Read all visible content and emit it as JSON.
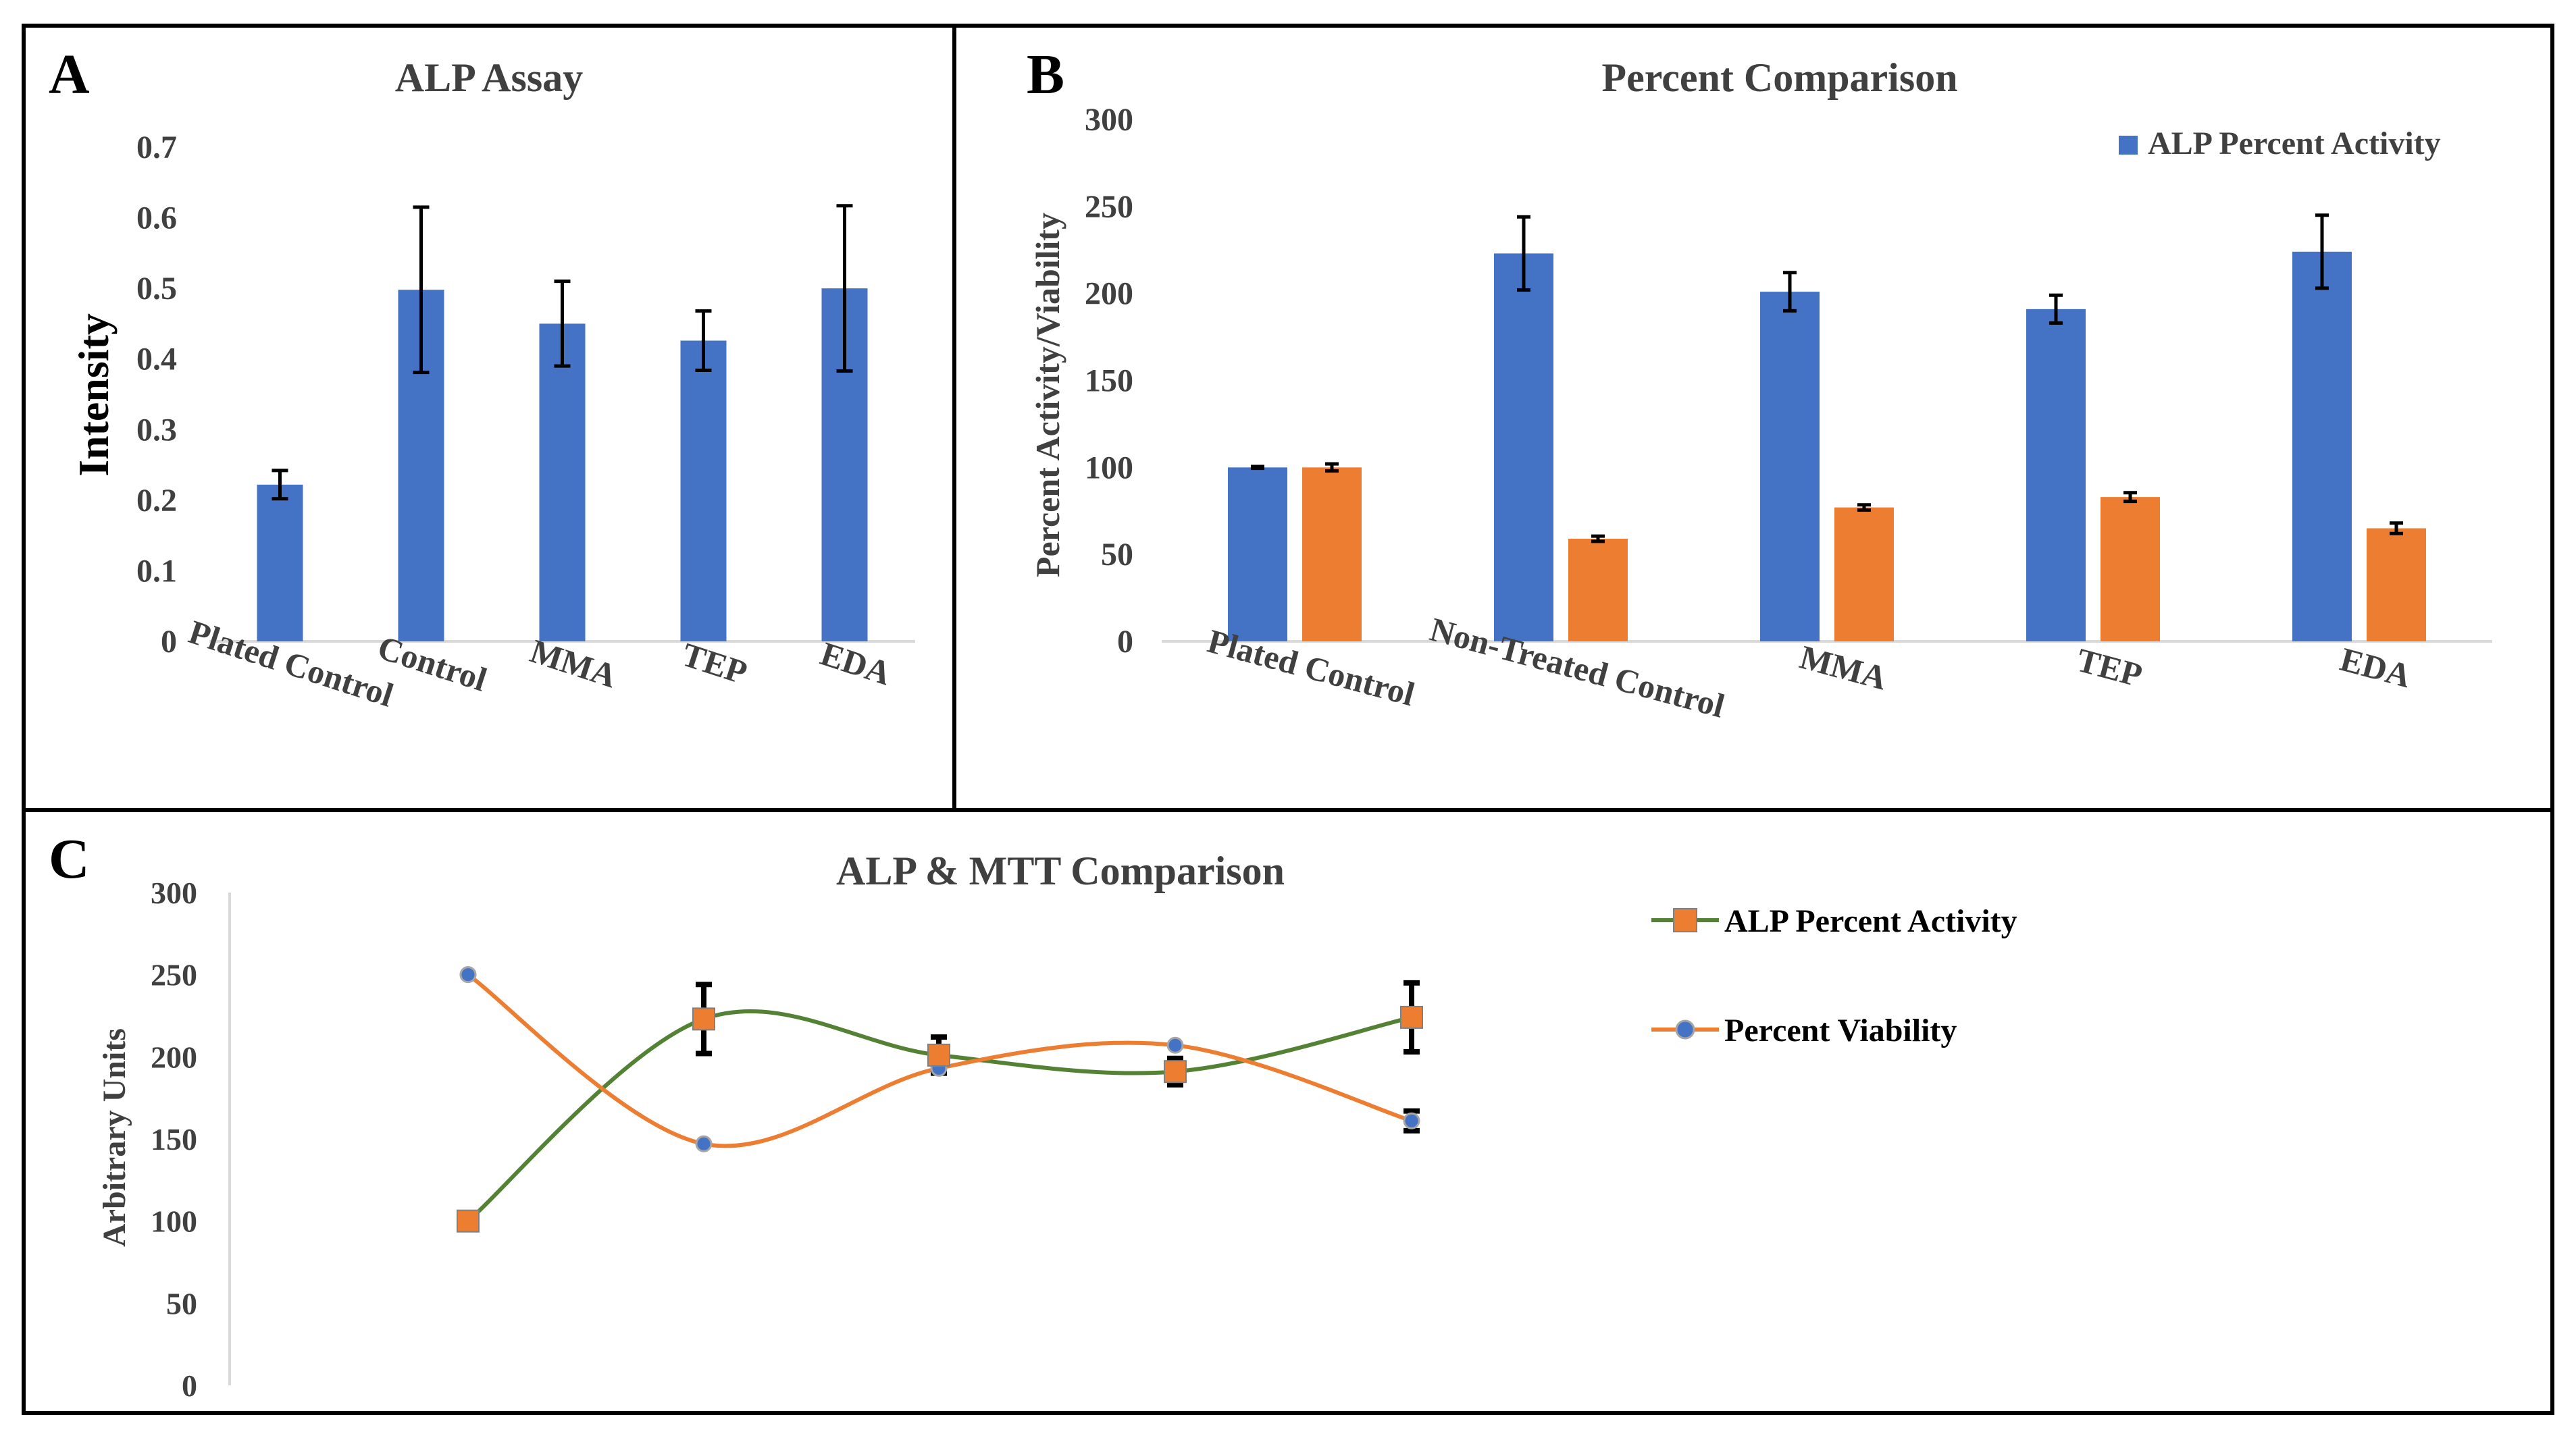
{
  "colors": {
    "blue": "#4472C4",
    "orange": "#ED7D31",
    "green": "#548235",
    "frame": "#000000",
    "axis": "#D9D9D9"
  },
  "panels": {
    "a": {
      "letter": "A"
    },
    "b": {
      "letter": "B"
    },
    "c": {
      "letter": "C"
    }
  },
  "chart_data": [
    {
      "id": "a",
      "type": "bar",
      "title": "ALP Assay",
      "xlabel": "",
      "ylabel": "Intensity",
      "categories": [
        "Plated Control",
        "Control",
        "MMA",
        "TEP",
        "EDA"
      ],
      "values": [
        0.222,
        0.498,
        0.45,
        0.426,
        0.5
      ],
      "errors": [
        0.02,
        0.117,
        0.06,
        0.042,
        0.117
      ],
      "ylim": [
        0,
        0.7
      ],
      "yticks": [
        "0",
        "0.1",
        "0.2",
        "0.3",
        "0.4",
        "0.5",
        "0.6",
        "0.7"
      ],
      "grid": false
    },
    {
      "id": "b",
      "type": "bar",
      "title": "Percent Comparison",
      "xlabel": "",
      "ylabel": "Percent Activity/Viability",
      "categories": [
        "Plated Control",
        "Non-Treated Control",
        "MMA",
        "TEP",
        "EDA"
      ],
      "series": [
        {
          "name": "ALP Percent Activity",
          "values": [
            100,
            223,
            201,
            191,
            224
          ],
          "errors": [
            0.5,
            21,
            11,
            8,
            21
          ]
        },
        {
          "name": "Percent Viability",
          "values": [
            100,
            59,
            77,
            83,
            65
          ],
          "errors": [
            2,
            1.5,
            1.5,
            2.5,
            3
          ]
        }
      ],
      "legend_entries": [
        "ALP Percent Activity"
      ],
      "legend_position": "top-right",
      "ylim": [
        0,
        300
      ],
      "yticks": [
        "0",
        "50",
        "100",
        "150",
        "200",
        "250",
        "300"
      ],
      "grid": false
    },
    {
      "id": "c",
      "type": "line",
      "title": "ALP & MTT Comparison",
      "xlabel": "",
      "ylabel": "Arbitrary Units",
      "x": [
        1,
        2,
        3,
        4,
        5
      ],
      "series": [
        {
          "name": "ALP Percent Activity",
          "marker": "square",
          "values": [
            100,
            223,
            201,
            191,
            224
          ],
          "errors": [
            0,
            21,
            11,
            8,
            21
          ]
        },
        {
          "name": "Percent Viability",
          "marker": "circle",
          "values": [
            250,
            147,
            193,
            207,
            161
          ],
          "errors": [
            0,
            0,
            0,
            0,
            6
          ]
        }
      ],
      "legend_position": "right",
      "ylim": [
        0,
        300
      ],
      "yticks": [
        "0",
        "50",
        "100",
        "150",
        "200",
        "250",
        "300"
      ],
      "grid": false
    }
  ]
}
